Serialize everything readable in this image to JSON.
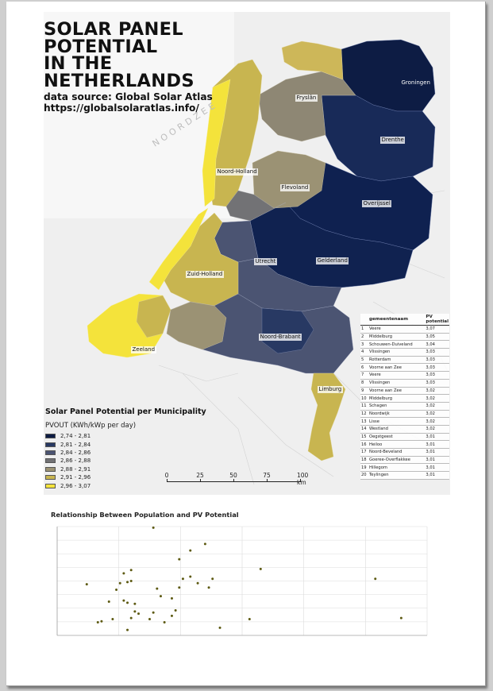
{
  "title_lines": [
    "SOLAR PANEL",
    "POTENTIAL",
    "IN THE",
    "NETHERLANDS"
  ],
  "source_line1": "data source: Global Solar Atlas",
  "source_line2": "https://globalsolaratlas.info/",
  "sea_label": "NOORDZEE",
  "provinces": [
    {
      "name": "Fryslân"
    },
    {
      "name": "Groningen"
    },
    {
      "name": "Drenthe"
    },
    {
      "name": "Noord-Holland"
    },
    {
      "name": "Flevoland"
    },
    {
      "name": "Overijssel"
    },
    {
      "name": "Utrecht"
    },
    {
      "name": "Gelderland"
    },
    {
      "name": "Zuid-Holland"
    },
    {
      "name": "Zeeland"
    },
    {
      "name": "Noord-Brabant"
    },
    {
      "name": "Limburg"
    }
  ],
  "legend": {
    "title": "Solar Panel Potential per Municipality",
    "unit": "PVOUT (KWh/kWp per day)",
    "classes": [
      {
        "label": "2,74 - 2,81",
        "color": "#0d1c44"
      },
      {
        "label": "2,81 - 2,84",
        "color": "#283963"
      },
      {
        "label": "2,84 - 2,86",
        "color": "#4b5472"
      },
      {
        "label": "2,86 - 2,88",
        "color": "#727275"
      },
      {
        "label": "2,88 - 2,91",
        "color": "#9b9274"
      },
      {
        "label": "2,91 - 2,96",
        "color": "#c8b550"
      },
      {
        "label": "2,96 - 3,07",
        "color": "#f4e33b"
      }
    ]
  },
  "table": {
    "headers": [
      "gemeentenaam",
      "PV potential"
    ],
    "rows": [
      {
        "rank": "1",
        "name": "Veere",
        "value": "3,07"
      },
      {
        "rank": "2",
        "name": "Middelburg",
        "value": "3,05"
      },
      {
        "rank": "3",
        "name": "Schouwen-Duiveland",
        "value": "3,04"
      },
      {
        "rank": "4",
        "name": "Vlissingen",
        "value": "3,03"
      },
      {
        "rank": "5",
        "name": "Rotterdam",
        "value": "3,03"
      },
      {
        "rank": "6",
        "name": "Voorne aan Zee",
        "value": "3,03"
      },
      {
        "rank": "7",
        "name": "Veere",
        "value": "3,03"
      },
      {
        "rank": "8",
        "name": "Vlissingen",
        "value": "3,03"
      },
      {
        "rank": "9",
        "name": "Voorne aan Zee",
        "value": "3,02"
      },
      {
        "rank": "10",
        "name": "Middelburg",
        "value": "3,02"
      },
      {
        "rank": "11",
        "name": "Schagen",
        "value": "3,02"
      },
      {
        "rank": "12",
        "name": "Noordwijk",
        "value": "3,02"
      },
      {
        "rank": "13",
        "name": "Lisse",
        "value": "3,02"
      },
      {
        "rank": "14",
        "name": "Westland",
        "value": "3,02"
      },
      {
        "rank": "15",
        "name": "Oegstgeest",
        "value": "3,01"
      },
      {
        "rank": "16",
        "name": "Heiloo",
        "value": "3,01"
      },
      {
        "rank": "17",
        "name": "Noord-Beveland",
        "value": "3,01"
      },
      {
        "rank": "18",
        "name": "Goeree-Overflakkee",
        "value": "3,01"
      },
      {
        "rank": "19",
        "name": "Hillegom",
        "value": "3,01"
      },
      {
        "rank": "20",
        "name": "Teylingen",
        "value": "3,01"
      }
    ]
  },
  "scalebar": {
    "labels": [
      "0",
      "25",
      "50",
      "75",
      "100 km"
    ]
  },
  "colors": {
    "dark_navy": "#0d1c44",
    "yellow": "#f4e33b",
    "point": "#5d5a12"
  },
  "chart_data": {
    "type": "scatter",
    "title": "Relationship Between Population and PV Potential",
    "xlabel": "",
    "ylabel": "",
    "xlim": [
      0,
      1
    ],
    "ylim": [
      0,
      1
    ],
    "grid": true,
    "points": [
      [
        0.08,
        0.47
      ],
      [
        0.14,
        0.31
      ],
      [
        0.15,
        0.15
      ],
      [
        0.12,
        0.13
      ],
      [
        0.11,
        0.12
      ],
      [
        0.16,
        0.42
      ],
      [
        0.17,
        0.48
      ],
      [
        0.18,
        0.57
      ],
      [
        0.19,
        0.49
      ],
      [
        0.2,
        0.5
      ],
      [
        0.19,
        0.3
      ],
      [
        0.18,
        0.32
      ],
      [
        0.21,
        0.29
      ],
      [
        0.22,
        0.2
      ],
      [
        0.21,
        0.22
      ],
      [
        0.2,
        0.16
      ],
      [
        0.19,
        0.05
      ],
      [
        0.26,
        0.21
      ],
      [
        0.28,
        0.36
      ],
      [
        0.27,
        0.43
      ],
      [
        0.25,
        0.15
      ],
      [
        0.26,
        0.99
      ],
      [
        0.31,
        0.34
      ],
      [
        0.32,
        0.23
      ],
      [
        0.33,
        0.44
      ],
      [
        0.31,
        0.18
      ],
      [
        0.33,
        0.7
      ],
      [
        0.34,
        0.52
      ],
      [
        0.36,
        0.54
      ],
      [
        0.36,
        0.78
      ],
      [
        0.38,
        0.48
      ],
      [
        0.4,
        0.84
      ],
      [
        0.41,
        0.44
      ],
      [
        0.42,
        0.52
      ],
      [
        0.44,
        0.07
      ],
      [
        0.52,
        0.15
      ],
      [
        0.55,
        0.61
      ],
      [
        0.86,
        0.52
      ],
      [
        0.93,
        0.16
      ],
      [
        0.29,
        0.12
      ],
      [
        0.2,
        0.6
      ]
    ]
  }
}
